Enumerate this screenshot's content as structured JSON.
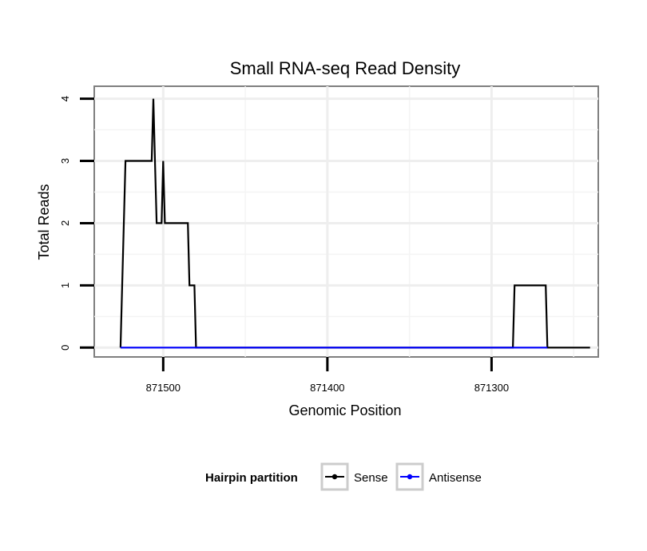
{
  "chart_data": {
    "type": "line",
    "title": "Small RNA-seq Read Density",
    "xlabel": "Genomic Position",
    "ylabel": "Total Reads",
    "x_reversed": true,
    "xlim": [
      871542,
      871235
    ],
    "ylim": [
      -0.15,
      4.2
    ],
    "x_ticks": [
      871500,
      871400,
      871300
    ],
    "x_tick_labels": [
      "871500",
      "871400",
      "871300"
    ],
    "x_minor_ticks": [
      871450,
      871350,
      871250
    ],
    "y_ticks": [
      0,
      1,
      2,
      3,
      4
    ],
    "y_tick_labels": [
      "0",
      "1",
      "2",
      "3",
      "4"
    ],
    "grid": true,
    "legend": {
      "title": "Hairpin partition",
      "position": "bottom"
    },
    "series": [
      {
        "name": "Sense",
        "color": "#000000",
        "x": [
          871526,
          871523,
          871507,
          871506,
          871505,
          871504,
          871501,
          871500,
          871499,
          871485,
          871484,
          871481,
          871480,
          871478,
          871425,
          871345,
          871287,
          871286,
          871267,
          871266,
          871240
        ],
        "values": [
          0,
          3,
          3,
          4,
          3,
          2,
          2,
          3,
          2,
          2,
          1,
          1,
          0,
          0,
          0,
          0,
          0,
          1,
          1,
          0,
          0
        ]
      },
      {
        "name": "Antisense",
        "color": "#0000ff",
        "x": [
          871526,
          871478,
          871287,
          871266
        ],
        "values": [
          0,
          0,
          0,
          0
        ]
      }
    ]
  }
}
